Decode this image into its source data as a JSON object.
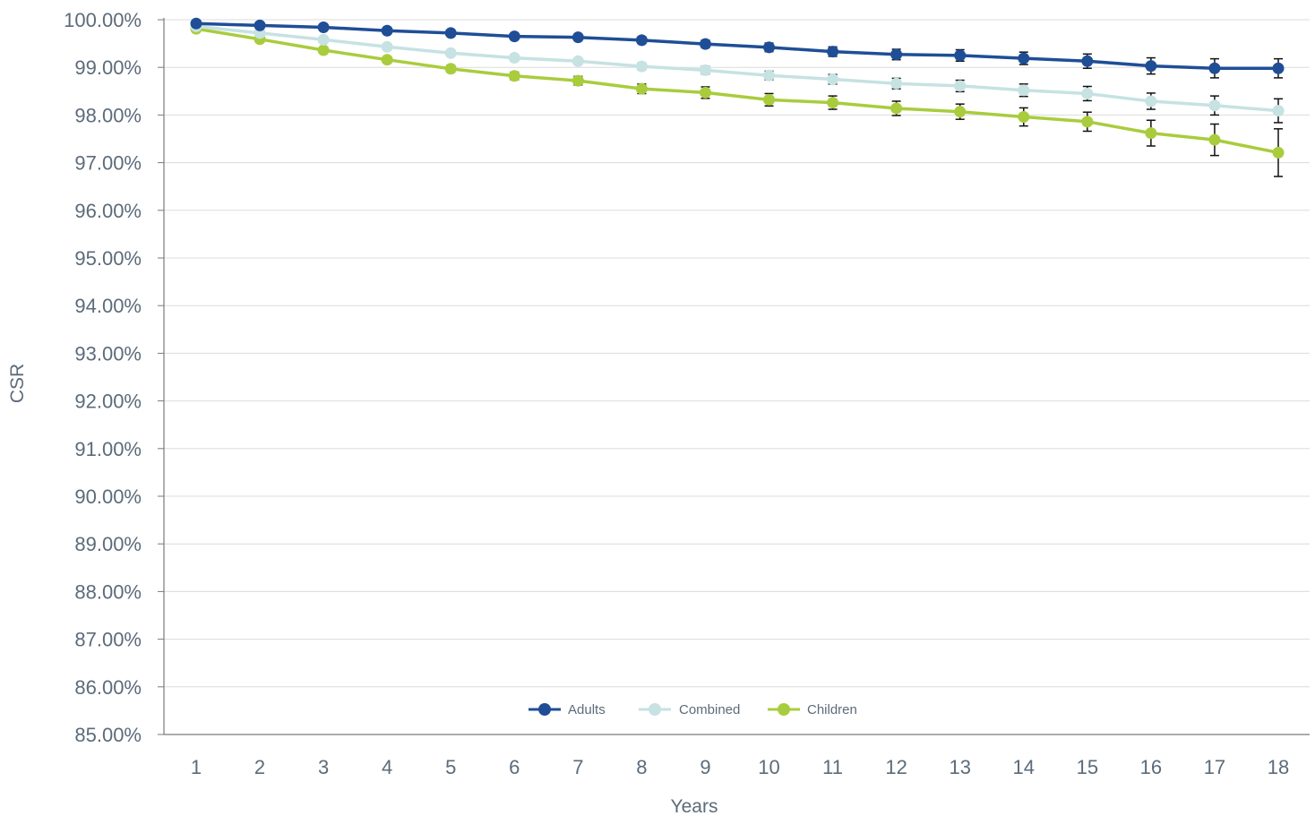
{
  "chart_data": {
    "type": "line",
    "title": "",
    "xlabel": "Years",
    "ylabel": "CSR",
    "ylim": [
      85,
      100
    ],
    "y_tick_step": 1,
    "y_tick_format": "percent_2dp",
    "grid": "horizontal",
    "legend_position": "bottom-center",
    "categories": [
      "1",
      "2",
      "3",
      "4",
      "5",
      "6",
      "7",
      "8",
      "9",
      "10",
      "11",
      "12",
      "13",
      "14",
      "15",
      "16",
      "17",
      "18"
    ],
    "series": [
      {
        "name": "Adults",
        "color": "#1f4e96",
        "values": [
          99.92,
          99.88,
          99.84,
          99.77,
          99.72,
          99.65,
          99.63,
          99.57,
          99.49,
          99.42,
          99.33,
          99.27,
          99.25,
          99.19,
          99.13,
          99.03,
          98.98,
          98.98
        ],
        "errors": [
          0.0,
          0.03,
          0.04,
          0.05,
          0.05,
          0.06,
          0.06,
          0.07,
          0.08,
          0.09,
          0.1,
          0.11,
          0.12,
          0.13,
          0.15,
          0.17,
          0.2,
          0.2
        ]
      },
      {
        "name": "Combined",
        "color": "#c6e2e3",
        "values": [
          99.86,
          99.72,
          99.58,
          99.43,
          99.3,
          99.2,
          99.13,
          99.02,
          98.94,
          98.83,
          98.75,
          98.66,
          98.61,
          98.52,
          98.45,
          98.29,
          98.2,
          98.09
        ],
        "errors": [
          0.0,
          0.03,
          0.04,
          0.05,
          0.05,
          0.06,
          0.06,
          0.07,
          0.08,
          0.09,
          0.1,
          0.11,
          0.12,
          0.13,
          0.15,
          0.17,
          0.2,
          0.25
        ]
      },
      {
        "name": "Children",
        "color": "#a9cc3d",
        "values": [
          99.81,
          99.59,
          99.36,
          99.16,
          98.97,
          98.82,
          98.72,
          98.55,
          98.47,
          98.32,
          98.26,
          98.14,
          98.07,
          97.96,
          97.86,
          97.62,
          97.48,
          97.21
        ],
        "errors": [
          0.0,
          0.04,
          0.05,
          0.06,
          0.07,
          0.08,
          0.09,
          0.1,
          0.12,
          0.13,
          0.14,
          0.15,
          0.16,
          0.19,
          0.2,
          0.27,
          0.33,
          0.5
        ]
      }
    ]
  }
}
